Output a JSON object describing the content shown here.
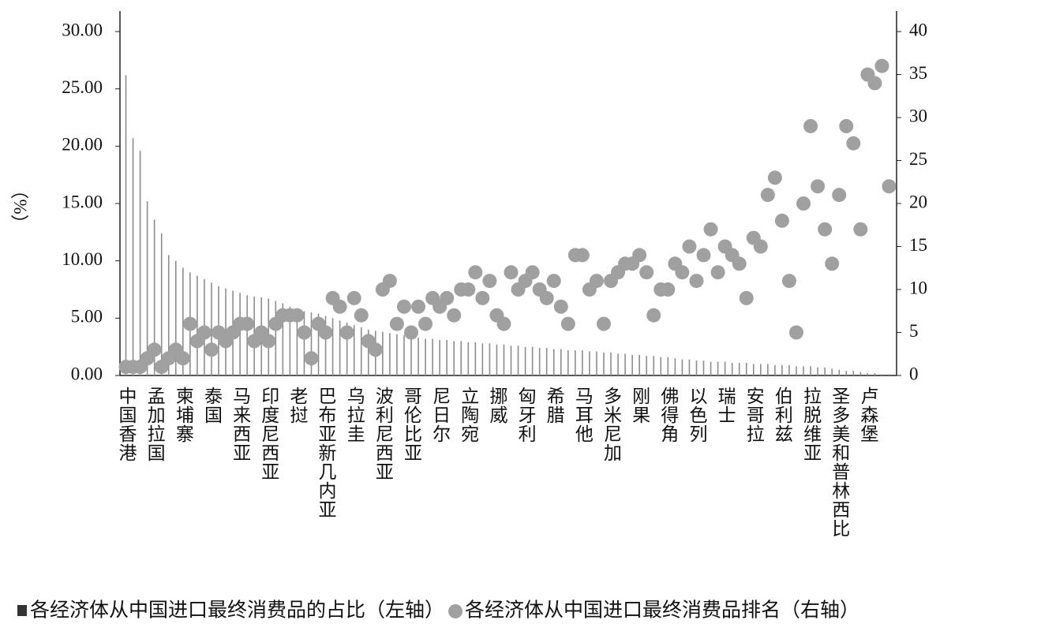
{
  "chart_data": {
    "type": "bar",
    "ylabel": "（%）",
    "categories": [
      "中国香港",
      null,
      null,
      null,
      "孟加拉国",
      null,
      null,
      null,
      "柬埔寨",
      null,
      null,
      null,
      "泰国",
      null,
      null,
      null,
      "马来西亚",
      null,
      null,
      null,
      "印度尼西亚",
      null,
      null,
      null,
      "老挝",
      null,
      null,
      null,
      "巴布亚新几内亚",
      null,
      null,
      null,
      "乌拉圭",
      null,
      null,
      null,
      "波利尼西亚",
      null,
      null,
      null,
      "哥伦比亚",
      null,
      null,
      null,
      "尼日尔",
      null,
      null,
      null,
      "立陶宛",
      null,
      null,
      null,
      "挪威",
      null,
      null,
      null,
      "匈牙利",
      null,
      null,
      null,
      "希腊",
      null,
      null,
      null,
      "马耳他",
      null,
      null,
      null,
      "多米尼加",
      null,
      null,
      null,
      "刚果",
      null,
      null,
      null,
      "佛得角",
      null,
      null,
      null,
      "以色列",
      null,
      null,
      null,
      "瑞士",
      null,
      null,
      null,
      "安哥拉",
      null,
      null,
      null,
      "伯利兹",
      null,
      null,
      null,
      "拉脱维亚",
      null,
      null,
      null,
      "圣多美和普林西比",
      null,
      null,
      null,
      "卢森堡",
      null,
      null,
      null
    ],
    "series": [
      {
        "name": "各经济体从中国进口最终消费品的占比（左轴）",
        "type": "bar",
        "axis": "y",
        "color": "#8c8c8c",
        "values": [
          26.2,
          20.7,
          19.6,
          15.2,
          13.6,
          12.4,
          10.5,
          10.0,
          9.4,
          9.0,
          8.7,
          8.4,
          8.1,
          7.8,
          7.6,
          7.4,
          7.2,
          7.0,
          6.9,
          6.8,
          6.7,
          6.5,
          6.3,
          6.0,
          5.8,
          5.6,
          5.5,
          5.4,
          5.2,
          5.0,
          4.8,
          4.6,
          4.4,
          4.2,
          4.0,
          3.9,
          3.8,
          3.7,
          3.6,
          3.5,
          3.4,
          3.3,
          3.2,
          3.2,
          3.1,
          3.1,
          3.0,
          3.0,
          2.9,
          2.9,
          2.8,
          2.8,
          2.7,
          2.7,
          2.6,
          2.6,
          2.5,
          2.5,
          2.4,
          2.4,
          2.3,
          2.3,
          2.2,
          2.2,
          2.2,
          2.1,
          2.1,
          2.0,
          2.0,
          1.9,
          1.9,
          1.8,
          1.8,
          1.7,
          1.7,
          1.6,
          1.6,
          1.5,
          1.4,
          1.4,
          1.3,
          1.3,
          1.2,
          1.2,
          1.2,
          1.1,
          1.1,
          1.1,
          1.0,
          1.0,
          1.0,
          0.9,
          0.9,
          0.9,
          0.8,
          0.8,
          0.8,
          0.7,
          0.7,
          0.6,
          0.5,
          0.4,
          0.4,
          0.3,
          0.2,
          0.2,
          0.1,
          0.1
        ]
      },
      {
        "name": "各经济体从中国进口最终消费品排名（右轴）",
        "type": "scatter",
        "axis": "y2",
        "color": "#a0a0a0",
        "values": [
          1,
          1,
          1,
          2,
          3,
          1,
          2,
          3,
          2,
          6,
          4,
          5,
          3,
          5,
          4,
          5,
          6,
          6,
          4,
          5,
          4,
          6,
          7,
          7,
          7,
          5,
          2,
          6,
          5,
          9,
          8,
          5,
          9,
          7,
          4,
          3,
          10,
          11,
          6,
          8,
          5,
          8,
          6,
          9,
          8,
          9,
          7,
          10,
          10,
          12,
          9,
          11,
          7,
          6,
          12,
          10,
          11,
          12,
          10,
          9,
          11,
          8,
          6,
          14,
          14,
          10,
          11,
          6,
          11,
          12,
          13,
          13,
          14,
          12,
          7,
          10,
          10,
          13,
          12,
          15,
          11,
          14,
          17,
          12,
          15,
          14,
          13,
          9,
          16,
          15,
          21,
          23,
          18,
          11,
          5,
          20,
          29,
          22,
          17,
          13,
          21,
          29,
          27,
          17,
          35,
          34,
          36,
          22
        ]
      }
    ],
    "ylim": [
      0,
      30
    ],
    "yticks": [
      {
        "value": 0,
        "label": "0.00"
      },
      {
        "value": 5,
        "label": "5.00"
      },
      {
        "value": 10,
        "label": "10.00"
      },
      {
        "value": 15,
        "label": "15.00"
      },
      {
        "value": 20,
        "label": "20.00"
      },
      {
        "value": 25,
        "label": "25.00"
      },
      {
        "value": 30,
        "label": "30.00"
      }
    ],
    "y2lim": [
      0,
      40
    ],
    "y2ticks": [
      0,
      5,
      10,
      15,
      20,
      25,
      30,
      35,
      40
    ],
    "grid": false
  }
}
